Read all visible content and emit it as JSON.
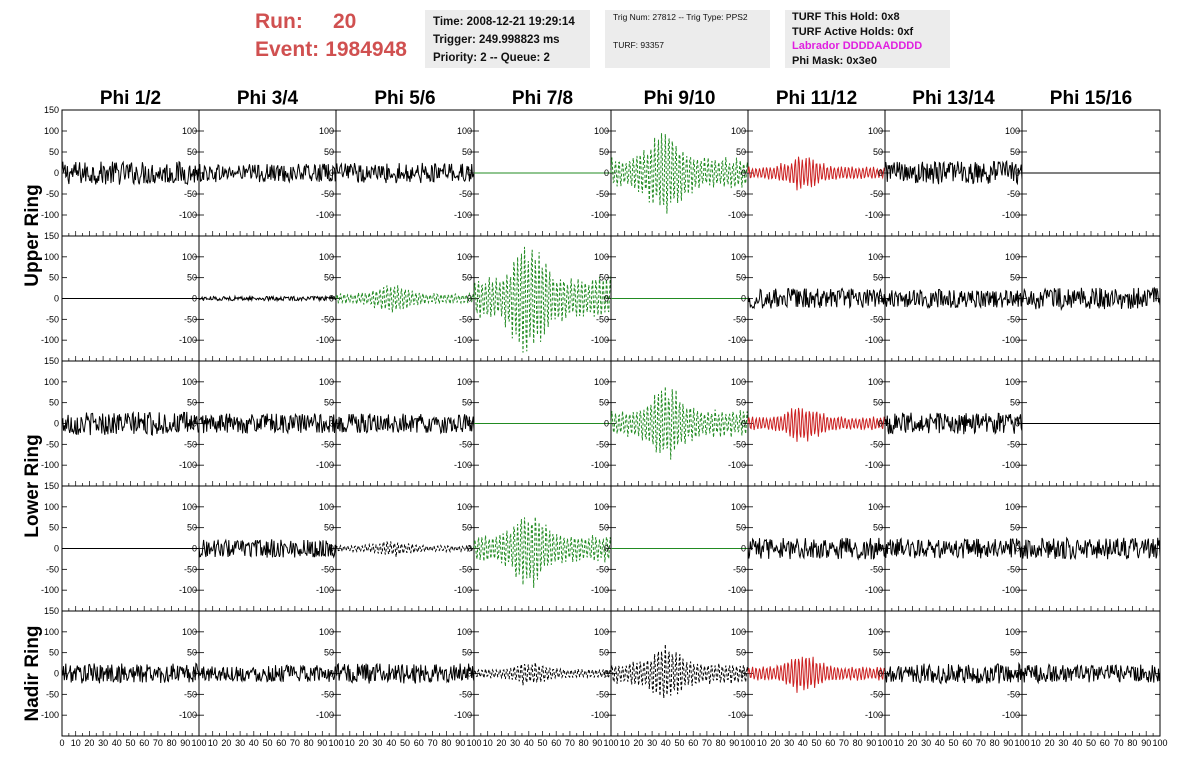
{
  "header": {
    "run_label": "Run:",
    "run_value": "20",
    "event_label": "Event:",
    "event_value": "1984948",
    "time": "Time: 2008-12-21 19:29:14",
    "trigger": "Trigger: 249.998823 ms",
    "priority": "Priority: 2 -- Queue: 2",
    "trig_num": "Trig Num: 27812 -- Trig Type: PPS2",
    "turf": "TURF: 93357",
    "turf_this_hold": "TURF This Hold: 0x8",
    "turf_active_holds": "TURF Active Holds: 0xf",
    "labrador": "Labrador DDDDAADDDD",
    "phi_mask": "Phi Mask: 0x3e0"
  },
  "colors": {
    "run_text": "#d05050",
    "info_bg": "#ececec",
    "labrador": "#e020e0",
    "black": "#000000",
    "green": "#228b22",
    "red": "#cc2222"
  },
  "chart_data": {
    "type": "line",
    "columns": [
      "Phi 1/2",
      "Phi 3/4",
      "Phi 5/6",
      "Phi 7/8",
      "Phi 9/10",
      "Phi 11/12",
      "Phi 13/14",
      "Phi 15/16"
    ],
    "ring_labels": [
      "Upper Ring",
      "Lower Ring",
      "Nadir Ring"
    ],
    "xlim": [
      0,
      100
    ],
    "ylim": [
      -150,
      150
    ],
    "y_ticks": [
      -100,
      -50,
      0,
      50,
      100,
      150
    ],
    "x_ticks": [
      0,
      10,
      20,
      30,
      40,
      50,
      60,
      70,
      80,
      90,
      100
    ],
    "rows": [
      [
        {
          "style": "noise",
          "color": "black",
          "amp": 28,
          "dash": false
        },
        {
          "style": "noise",
          "color": "black",
          "amp": 22,
          "dash": false
        },
        {
          "style": "noise",
          "color": "black",
          "amp": 24,
          "dash": false
        },
        {
          "style": "flat",
          "color": "green",
          "amp": 0,
          "dash": false
        },
        {
          "style": "pulse",
          "color": "green",
          "amp": 110,
          "dash": true
        },
        {
          "style": "pulse",
          "color": "red",
          "amp": 45,
          "dash": false
        },
        {
          "style": "noise",
          "color": "black",
          "amp": 28,
          "dash": false
        },
        {
          "style": "flat",
          "color": "black",
          "amp": 0,
          "dash": false
        }
      ],
      [
        {
          "style": "flat",
          "color": "black",
          "amp": 0,
          "dash": false
        },
        {
          "style": "noise",
          "color": "black",
          "amp": 5,
          "dash": false
        },
        {
          "style": "pulse",
          "color": "green",
          "amp": 38,
          "dash": true
        },
        {
          "style": "pulse",
          "color": "green",
          "amp": 150,
          "dash": true
        },
        {
          "style": "flat",
          "color": "green",
          "amp": 0,
          "dash": false
        },
        {
          "style": "noise",
          "color": "black",
          "amp": 24,
          "dash": false
        },
        {
          "style": "noise",
          "color": "black",
          "amp": 22,
          "dash": false
        },
        {
          "style": "noise",
          "color": "black",
          "amp": 26,
          "dash": false
        }
      ],
      [
        {
          "style": "noise",
          "color": "black",
          "amp": 28,
          "dash": false
        },
        {
          "style": "noise",
          "color": "black",
          "amp": 24,
          "dash": false
        },
        {
          "style": "noise",
          "color": "black",
          "amp": 24,
          "dash": false
        },
        {
          "style": "flat",
          "color": "green",
          "amp": 0,
          "dash": false
        },
        {
          "style": "pulse",
          "color": "green",
          "amp": 100,
          "dash": true
        },
        {
          "style": "pulse",
          "color": "red",
          "amp": 48,
          "dash": false
        },
        {
          "style": "noise",
          "color": "black",
          "amp": 26,
          "dash": false
        },
        {
          "style": "flat",
          "color": "black",
          "amp": 0,
          "dash": false
        }
      ],
      [
        {
          "style": "flat",
          "color": "black",
          "amp": 0,
          "dash": false
        },
        {
          "style": "noise",
          "color": "black",
          "amp": 22,
          "dash": false
        },
        {
          "style": "pulse",
          "color": "black",
          "amp": 22,
          "dash": true
        },
        {
          "style": "pulse",
          "color": "green",
          "amp": 100,
          "dash": true
        },
        {
          "style": "flat",
          "color": "green",
          "amp": 0,
          "dash": false
        },
        {
          "style": "noise",
          "color": "black",
          "amp": 26,
          "dash": false
        },
        {
          "style": "noise",
          "color": "black",
          "amp": 24,
          "dash": false
        },
        {
          "style": "noise",
          "color": "black",
          "amp": 26,
          "dash": false
        }
      ],
      [
        {
          "style": "noise",
          "color": "black",
          "amp": 24,
          "dash": false
        },
        {
          "style": "noise",
          "color": "black",
          "amp": 20,
          "dash": false
        },
        {
          "style": "noise",
          "color": "black",
          "amp": 24,
          "dash": false
        },
        {
          "style": "pulse",
          "color": "black",
          "amp": 32,
          "dash": true
        },
        {
          "style": "pulse",
          "color": "black",
          "amp": 75,
          "dash": true
        },
        {
          "style": "pulse",
          "color": "red",
          "amp": 50,
          "dash": false
        },
        {
          "style": "noise",
          "color": "black",
          "amp": 24,
          "dash": false
        },
        {
          "style": "noise",
          "color": "black",
          "amp": 22,
          "dash": false
        }
      ]
    ]
  }
}
